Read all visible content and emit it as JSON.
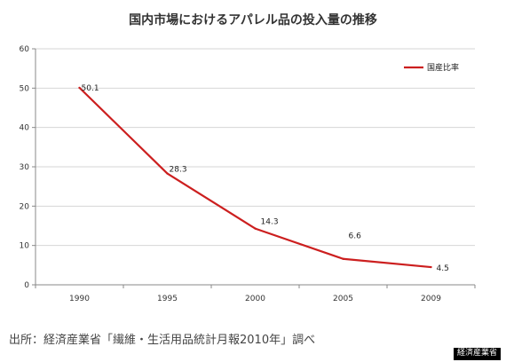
{
  "chart_data": {
    "type": "line",
    "title": "国内市場におけるアパレル品の投入量の推移",
    "categories": [
      "1990",
      "1995",
      "2000",
      "2005",
      "2009"
    ],
    "series": [
      {
        "name": "国産比率",
        "values": [
          50.1,
          28.3,
          14.3,
          6.6,
          4.5
        ],
        "color": "#cc1f1f"
      }
    ],
    "data_labels": [
      "50.1",
      "28.3",
      "14.3",
      "6.6",
      "4.5"
    ],
    "ylim": [
      0,
      60
    ],
    "yticks": [
      0,
      10,
      20,
      30,
      40,
      50,
      60
    ],
    "grid": true,
    "legend": "top-right"
  },
  "source_text": "出所：経済産業省「繊維・生活用品統計月報2010年」調べ",
  "credit_text": "経済産業省"
}
